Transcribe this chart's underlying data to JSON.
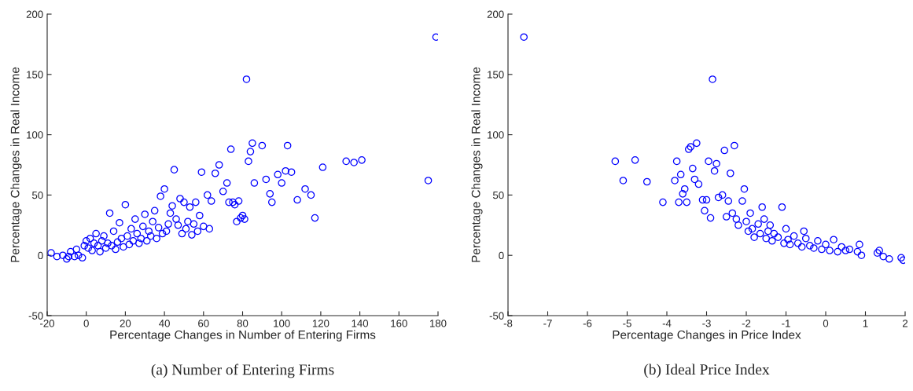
{
  "chart_data": [
    {
      "type": "scatter",
      "xlabel": "Percentage Changes in Number of Entering Firms",
      "ylabel": "Percentage Changes in Real Income",
      "xlim": [
        -20,
        180
      ],
      "xticks": [
        -20,
        0,
        20,
        40,
        60,
        80,
        100,
        120,
        140,
        160,
        180
      ],
      "ylim": [
        -50,
        200
      ],
      "yticks": [
        -50,
        0,
        50,
        100,
        150,
        200
      ],
      "marker": "circle",
      "grid": false,
      "annotations": [
        "(a) Number of Entering Firms"
      ],
      "series": [
        {
          "color": "#0000ff",
          "x": [
            -18,
            -15,
            -12,
            -10,
            -9,
            -8,
            -6,
            -5,
            -4,
            -2,
            -1,
            0,
            1,
            2,
            3,
            4,
            5,
            6,
            7,
            8,
            9,
            10,
            11,
            12,
            13,
            14,
            15,
            16,
            17,
            18,
            19,
            20,
            21,
            22,
            23,
            24,
            25,
            26,
            27,
            28,
            29,
            30,
            31,
            32,
            33,
            34,
            35,
            36,
            37,
            38,
            39,
            40,
            41,
            42,
            43,
            44,
            45,
            46,
            47,
            48,
            49,
            50,
            51,
            52,
            53,
            54,
            55,
            56,
            57,
            58,
            59,
            60,
            62,
            63,
            64,
            66,
            68,
            70,
            72,
            73,
            74,
            75,
            76,
            77,
            78,
            79,
            80,
            81,
            82,
            83,
            84,
            85,
            86,
            90,
            92,
            94,
            95,
            98,
            100,
            102,
            103,
            105,
            108,
            112,
            115,
            117,
            121,
            133,
            137,
            141,
            175,
            179
          ],
          "values": [
            2,
            -1,
            0,
            -3,
            -1,
            3,
            -1,
            5,
            0,
            -2,
            8,
            12,
            6,
            14,
            4,
            10,
            18,
            8,
            3,
            12,
            16,
            6,
            10,
            35,
            8,
            20,
            5,
            11,
            27,
            14,
            7,
            42,
            16,
            9,
            22,
            12,
            30,
            18,
            10,
            14,
            24,
            34,
            12,
            20,
            16,
            28,
            37,
            14,
            23,
            49,
            18,
            55,
            20,
            26,
            35,
            41,
            71,
            30,
            25,
            47,
            18,
            44,
            22,
            28,
            40,
            17,
            26,
            44,
            20,
            33,
            69,
            24,
            50,
            22,
            45,
            68,
            75,
            53,
            60,
            44,
            88,
            44,
            42,
            28,
            45,
            31,
            33,
            30,
            146,
            78,
            86,
            93,
            60,
            91,
            63,
            51,
            44,
            67,
            60,
            70,
            91,
            69,
            46,
            55,
            50,
            31,
            73,
            78,
            77,
            79,
            62,
            181
          ]
        }
      ]
    },
    {
      "type": "scatter",
      "xlabel": "Percentage Changes in Price Index",
      "ylabel": "Percentage Changes in Real Income",
      "xlim": [
        -8,
        2
      ],
      "xticks": [
        -8,
        -7,
        -6,
        -5,
        -4,
        -3,
        -2,
        -1,
        0,
        1,
        2
      ],
      "ylim": [
        -50,
        200
      ],
      "yticks": [
        -50,
        0,
        50,
        100,
        150,
        200
      ],
      "marker": "circle",
      "grid": false,
      "annotations": [
        "(b) Ideal Price Index"
      ],
      "series": [
        {
          "color": "#0000ff",
          "x": [
            -7.6,
            -5.3,
            -5.1,
            -4.8,
            -4.5,
            -4.1,
            -3.8,
            -3.75,
            -3.7,
            -3.65,
            -3.6,
            -3.55,
            -3.5,
            -3.45,
            -3.4,
            -3.35,
            -3.3,
            -3.25,
            -3.2,
            -3.1,
            -3.05,
            -3.0,
            -2.95,
            -2.9,
            -2.85,
            -2.8,
            -2.75,
            -2.7,
            -2.6,
            -2.55,
            -2.5,
            -2.45,
            -2.4,
            -2.35,
            -2.3,
            -2.25,
            -2.2,
            -2.1,
            -2.05,
            -2.0,
            -1.95,
            -1.9,
            -1.85,
            -1.8,
            -1.7,
            -1.65,
            -1.6,
            -1.55,
            -1.5,
            -1.45,
            -1.4,
            -1.35,
            -1.3,
            -1.2,
            -1.1,
            -1.05,
            -1.0,
            -0.95,
            -0.9,
            -0.8,
            -0.7,
            -0.6,
            -0.55,
            -0.5,
            -0.4,
            -0.3,
            -0.2,
            -0.1,
            0.0,
            0.1,
            0.2,
            0.3,
            0.4,
            0.5,
            0.6,
            0.8,
            0.85,
            0.9,
            1.3,
            1.35,
            1.45,
            1.6,
            1.9,
            1.95
          ],
          "values": [
            181,
            78,
            62,
            79,
            61,
            44,
            62,
            78,
            44,
            67,
            51,
            55,
            44,
            88,
            90,
            72,
            63,
            93,
            59,
            46,
            37,
            46,
            78,
            31,
            146,
            70,
            76,
            48,
            50,
            87,
            32,
            45,
            68,
            35,
            91,
            30,
            25,
            45,
            55,
            28,
            20,
            35,
            22,
            15,
            26,
            18,
            40,
            30,
            14,
            20,
            25,
            12,
            18,
            15,
            40,
            10,
            22,
            13,
            9,
            16,
            10,
            7,
            20,
            14,
            8,
            6,
            12,
            5,
            9,
            4,
            13,
            3,
            7,
            4,
            5,
            3,
            9,
            0,
            2,
            4,
            -1,
            -3,
            -2,
            -4
          ]
        }
      ]
    }
  ]
}
